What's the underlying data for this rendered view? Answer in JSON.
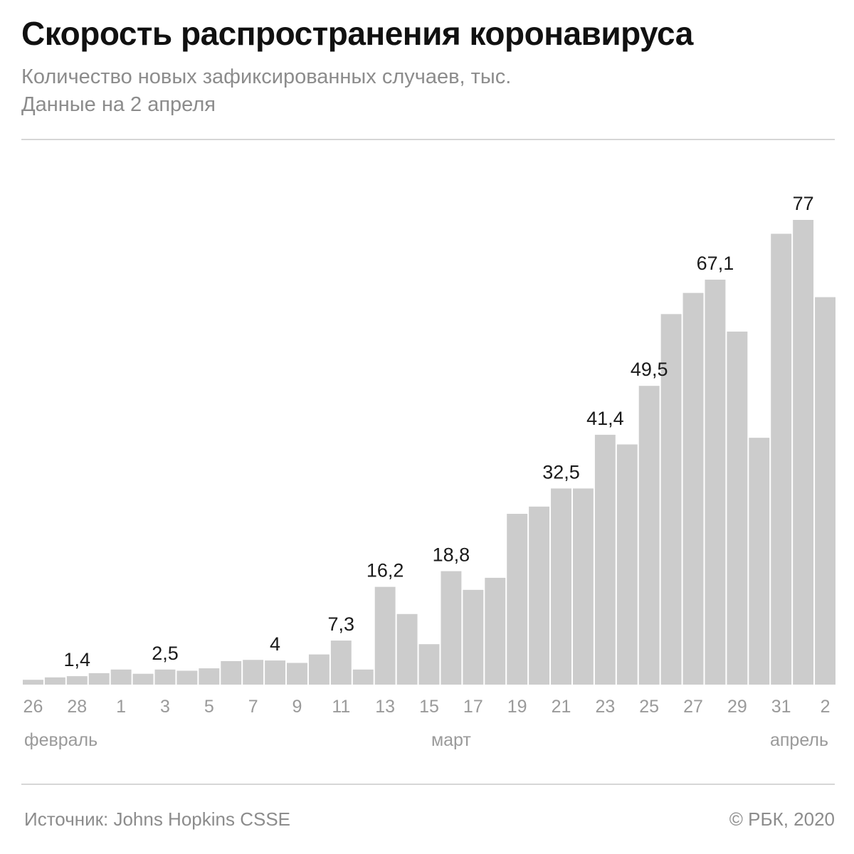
{
  "header": {
    "title": "Скорость распространения коронавируса",
    "subtitle_line1": "Количество новых зафиксированных случаев, тыс.",
    "subtitle_line2": "Данные на 2 апреля"
  },
  "footer": {
    "source": "Источник: Johns Hopkins CSSE",
    "credit": "© РБК, 2020"
  },
  "colors": {
    "bar": "#cccccc",
    "text": "#1a1a1a",
    "muted": "#9a9a9a"
  },
  "chart_data": {
    "type": "bar",
    "title": "Скорость распространения коронавируса",
    "ylabel": "",
    "xlabel": "",
    "ylim": [
      0,
      80
    ],
    "grid": false,
    "categories": [
      "26",
      "27",
      "28",
      "29",
      "1",
      "2",
      "3",
      "4",
      "5",
      "6",
      "7",
      "8",
      "9",
      "10",
      "11",
      "12",
      "13",
      "14",
      "15",
      "16",
      "17",
      "18",
      "19",
      "20",
      "21",
      "22",
      "23",
      "24",
      "25",
      "26",
      "27",
      "28",
      "29",
      "30",
      "31",
      "1",
      "2"
    ],
    "values": [
      0.8,
      1.2,
      1.4,
      1.9,
      2.5,
      1.8,
      2.5,
      2.3,
      2.7,
      3.9,
      4.1,
      4.0,
      3.6,
      5.0,
      7.3,
      2.5,
      16.2,
      11.7,
      6.7,
      18.8,
      15.7,
      17.7,
      28.3,
      29.5,
      32.5,
      32.5,
      41.4,
      39.8,
      49.5,
      61.4,
      64.9,
      67.1,
      58.5,
      40.9,
      74.7,
      77.0,
      64.2
    ],
    "value_labels": [
      {
        "index": 2,
        "text": "1,4"
      },
      {
        "index": 6,
        "text": "2,5"
      },
      {
        "index": 11,
        "text": "4"
      },
      {
        "index": 14,
        "text": "7,3"
      },
      {
        "index": 16,
        "text": "16,2"
      },
      {
        "index": 19,
        "text": "18,8"
      },
      {
        "index": 24,
        "text": "32,5"
      },
      {
        "index": 26,
        "text": "41,4"
      },
      {
        "index": 28,
        "text": "49,5"
      },
      {
        "index": 31,
        "text": "67,1"
      },
      {
        "index": 35,
        "text": "77"
      }
    ],
    "tick_labels": [
      {
        "index": 0,
        "text": "26"
      },
      {
        "index": 2,
        "text": "28"
      },
      {
        "index": 4,
        "text": "1"
      },
      {
        "index": 6,
        "text": "3"
      },
      {
        "index": 8,
        "text": "5"
      },
      {
        "index": 10,
        "text": "7"
      },
      {
        "index": 12,
        "text": "9"
      },
      {
        "index": 14,
        "text": "11"
      },
      {
        "index": 16,
        "text": "13"
      },
      {
        "index": 18,
        "text": "15"
      },
      {
        "index": 20,
        "text": "17"
      },
      {
        "index": 22,
        "text": "19"
      },
      {
        "index": 24,
        "text": "21"
      },
      {
        "index": 26,
        "text": "23"
      },
      {
        "index": 28,
        "text": "25"
      },
      {
        "index": 30,
        "text": "27"
      },
      {
        "index": 32,
        "text": "29"
      },
      {
        "index": 34,
        "text": "31"
      },
      {
        "index": 36,
        "text": "2"
      }
    ],
    "month_labels": [
      {
        "text": "февраль",
        "index": 0,
        "anchor": "start"
      },
      {
        "text": "март",
        "index": 19,
        "anchor": "middle"
      },
      {
        "text": "апрель",
        "index": 36,
        "anchor": "end"
      }
    ]
  }
}
